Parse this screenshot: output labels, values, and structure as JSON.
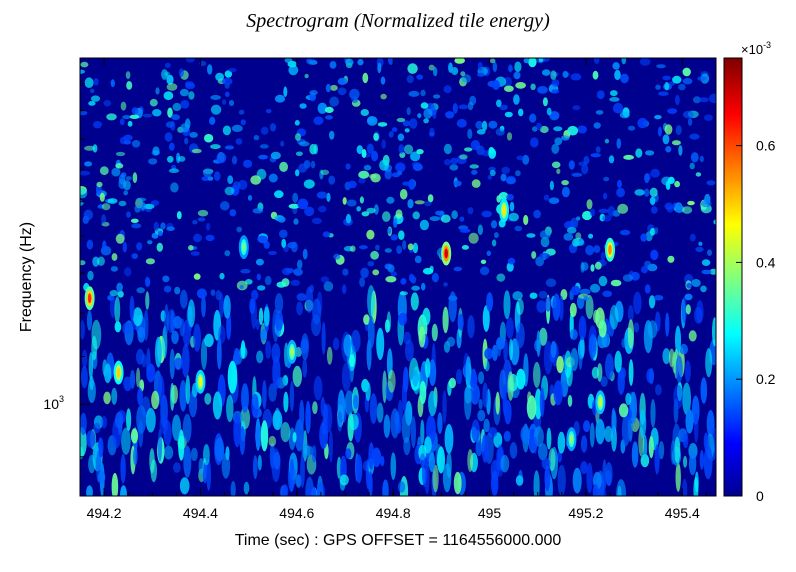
{
  "chart_data": {
    "type": "heatmap",
    "title": "Spectrogram (Normalized tile energy)",
    "xlabel": "Time (sec) : GPS OFFSET = 1164556000.000",
    "ylabel": "Frequency (Hz)",
    "xlim": [
      494.15,
      495.47
    ],
    "x_ticks": [
      494.2,
      494.4,
      494.6,
      494.8,
      495,
      495.2,
      495.4
    ],
    "x_tick_labels": [
      "494.2",
      "494.4",
      "494.6",
      "494.8",
      "495",
      "495.2",
      "495.4"
    ],
    "y_scale": "log",
    "ylim": [
      832,
      2000
    ],
    "y_ticks": [
      1000
    ],
    "y_tick_base": "10",
    "y_tick_exponent": "3",
    "colorbar": {
      "range": [
        0,
        0.00075
      ],
      "ticks": [
        0,
        0.2,
        0.4,
        0.6
      ],
      "tick_labels": [
        "0",
        "0.2",
        "0.4",
        "0.6"
      ],
      "multiplier_base": "×10",
      "multiplier_exponent": "-3",
      "colormap": [
        "#00008f",
        "#0000ff",
        "#00ffff",
        "#ffff00",
        "#ff0000",
        "#800000"
      ]
    },
    "grid": false,
    "notable_peaks": [
      {
        "time": 494.91,
        "value": 0.00068
      },
      {
        "time": 494.17,
        "value": 0.00062
      },
      {
        "time": 495.25,
        "value": 0.00055
      },
      {
        "time": 494.23,
        "value": 0.0005
      },
      {
        "time": 495.03,
        "value": 0.00048
      },
      {
        "time": 494.4,
        "value": 0.00045
      },
      {
        "time": 494.59,
        "value": 0.0004
      },
      {
        "time": 495.23,
        "value": 0.00042
      },
      {
        "time": 495.17,
        "value": 0.00038
      },
      {
        "time": 494.49,
        "value": 0.00036
      }
    ]
  }
}
